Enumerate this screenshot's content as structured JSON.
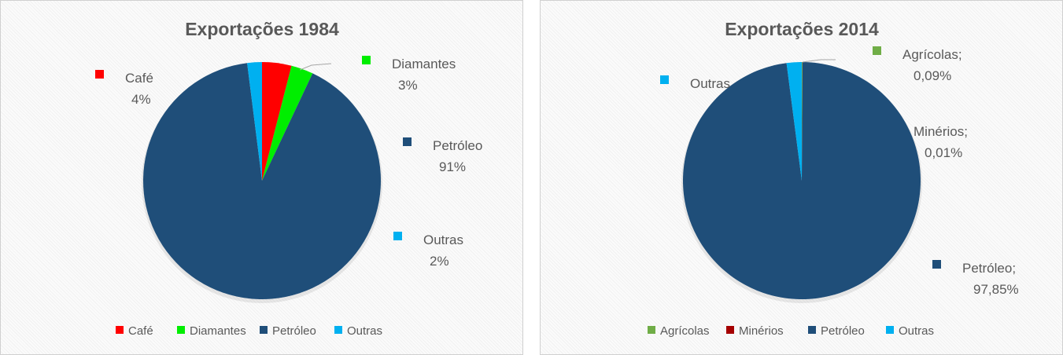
{
  "chart_data": [
    {
      "type": "pie",
      "title": "Exportações 1984",
      "categories": [
        "Café",
        "Diamantes",
        "Petróleo",
        "Outras"
      ],
      "values": [
        4,
        3,
        91,
        2
      ],
      "data_labels": [
        "4%",
        "3%",
        "91%",
        "2%"
      ],
      "colors": [
        "#ff0000",
        "#00ee00",
        "#1f4e79",
        "#00b0f0"
      ],
      "legend": "bottom"
    },
    {
      "type": "pie",
      "title": "Exportações 2014",
      "categories": [
        "Agrícolas",
        "Minérios",
        "Petróleo",
        "Outras"
      ],
      "values": [
        0.09,
        0.01,
        97.85,
        2.05
      ],
      "label_names": [
        "Agrícolas;",
        "Minérios;",
        "Petróleo;",
        "Outras"
      ],
      "data_labels": [
        "0,09%",
        "0,01%",
        "97,85%",
        ""
      ],
      "colors": [
        "#70ad47",
        "#a50000",
        "#1f4e79",
        "#00b0f0"
      ],
      "legend": "bottom"
    }
  ]
}
